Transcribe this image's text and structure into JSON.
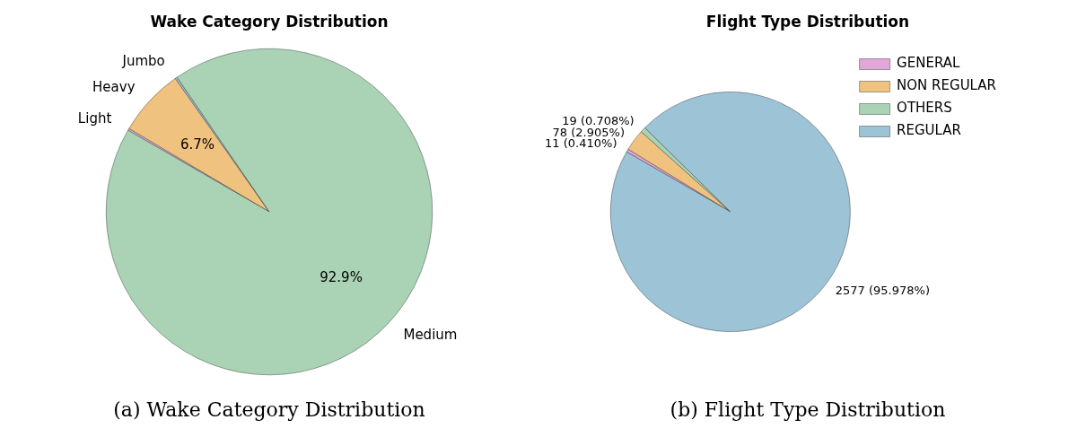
{
  "chart_data": [
    {
      "type": "pie",
      "title": "Wake Category Distribution",
      "categories": [
        "Light",
        "Heavy",
        "Jumbo",
        "Medium"
      ],
      "values": [
        0.2,
        6.7,
        0.2,
        92.9
      ],
      "colors": [
        "#e3a6d8",
        "#f0c27f",
        "#9dc3d6",
        "#a9d3b4"
      ],
      "value_labels": [
        null,
        "6.7%",
        null,
        "92.9%"
      ],
      "legend": false,
      "annotations": [
        "(a) Wake Category Distribution"
      ]
    },
    {
      "type": "pie",
      "title": "Flight Type Distribution",
      "categories": [
        "GENERAL",
        "NON REGULAR",
        "OTHERS",
        "REGULAR"
      ],
      "values": [
        11,
        78,
        19,
        2577
      ],
      "colors": [
        "#e3a6d8",
        "#f0c27f",
        "#a9d3b4",
        "#9dc3d6"
      ],
      "value_labels": [
        "11 (0.410%)",
        "78 (2.905%)",
        "19 (0.708%)",
        "2577 (95.978%)"
      ],
      "legend": "top right",
      "annotations": [
        "(b) Flight Type Distribution"
      ]
    }
  ]
}
